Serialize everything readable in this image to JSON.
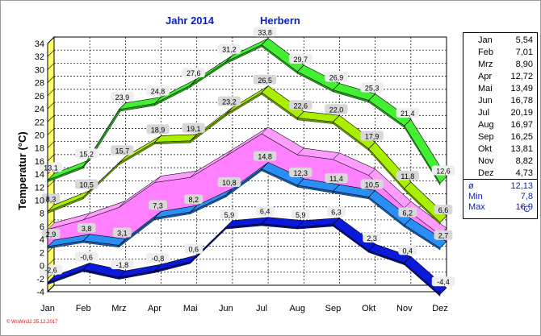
{
  "header": {
    "year_label": "Jahr  2014",
    "station": "Herbern"
  },
  "chart_data": {
    "type": "area",
    "title": "Jahr  2014   Herbern",
    "ylabel": "Temperatur  (°C)",
    "xlabel": "",
    "ylim": [
      -4,
      34
    ],
    "yticks": [
      "-4",
      "-2",
      "0",
      "2",
      "4",
      "6",
      "8",
      "10",
      "12",
      "14",
      "16",
      "18",
      "20",
      "22",
      "24",
      "26",
      "28",
      "30",
      "32",
      "34"
    ],
    "categories": [
      "Jan",
      "Feb",
      "Mrz",
      "Apr",
      "Mai",
      "Jun",
      "Jul",
      "Aug",
      "Sep",
      "Okt",
      "Nov",
      "Dez"
    ],
    "grid": true,
    "series": [
      {
        "values": [
          13.1,
          15.2,
          23.9,
          24.8,
          27.6,
          31.2,
          33.8,
          29.7,
          26.9,
          25.3,
          21.4,
          12.6
        ],
        "labels": [
          "13,1",
          "15,2",
          "23,9",
          "24,8",
          "27,6",
          "31,2",
          "33,8",
          "29,7",
          "26,9",
          "25,3",
          "21,4",
          "12,6"
        ]
      },
      {
        "values": [
          8.3,
          10.5,
          15.7,
          18.9,
          19.1,
          23.2,
          26.5,
          22.6,
          22.0,
          17.9,
          11.8,
          6.6
        ],
        "labels": [
          "8,3",
          "10,5",
          "15,7",
          "18,9",
          "19,1",
          "23,2",
          "26,5",
          "22,6",
          "22,0",
          "17,9",
          "11,8",
          "6,6"
        ]
      },
      {
        "values": [
          5.54,
          7.01,
          8.9,
          12.72,
          13.49,
          16.78,
          20.19,
          16.97,
          16.25,
          13.81,
          8.82,
          4.73
        ]
      },
      {
        "values": [
          2.9,
          3.8,
          3.1,
          7.3,
          8.2,
          10.8,
          14.8,
          12.3,
          11.4,
          10.5,
          6.2,
          2.7
        ],
        "labels": [
          "2,9",
          "3,8",
          "3,1",
          "7,3",
          "8,2",
          "10,8",
          "14,8",
          "12,3",
          "11,4",
          "10,5",
          "6,2",
          "2,7"
        ]
      },
      {
        "values": [
          -2.6,
          -0.6,
          -1.8,
          -0.8,
          0.6,
          5.9,
          6.4,
          5.9,
          6.3,
          2.3,
          0.4,
          -4.4
        ],
        "labels": [
          "-2,6",
          "-0,6",
          "-1,8",
          "-0,8",
          "0,6",
          "5,9",
          "6,4",
          "5,9",
          "6,3",
          "2,3",
          "0,4",
          "-4,4"
        ]
      }
    ],
    "colors": {
      "max_band": "#44ee33",
      "mean_max_band": "#aaee00",
      "mean_band": "#ff80ff",
      "mean_min_band": "#2a8ef2",
      "min_band": "#0a1ad8",
      "grid": "#000000",
      "left_wall": "#ffff66",
      "title": "#0a1fc4"
    }
  },
  "legend": {
    "months": [
      {
        "m": "Jan",
        "v": "5,54"
      },
      {
        "m": "Feb",
        "v": "7,01"
      },
      {
        "m": "Mrz",
        "v": "8,90"
      },
      {
        "m": "Apr",
        "v": "12,72"
      },
      {
        "m": "Mai",
        "v": "13,49"
      },
      {
        "m": "Jun",
        "v": "16,78"
      },
      {
        "m": "Jul",
        "v": "20,19"
      },
      {
        "m": "Aug",
        "v": "16,97"
      },
      {
        "m": "Sep",
        "v": "16,25"
      },
      {
        "m": "Okt",
        "v": "13,81"
      },
      {
        "m": "Nov",
        "v": "8,82"
      },
      {
        "m": "Dez",
        "v": "4,73"
      }
    ],
    "stats": [
      {
        "m": "ø",
        "v": "12,13"
      },
      {
        "m": "Min",
        "v": "7,8"
      },
      {
        "m": "Max",
        "v": "16,9"
      }
    ],
    "unit": "°C"
  },
  "copyright": "© WsWin32  25.12.2017"
}
